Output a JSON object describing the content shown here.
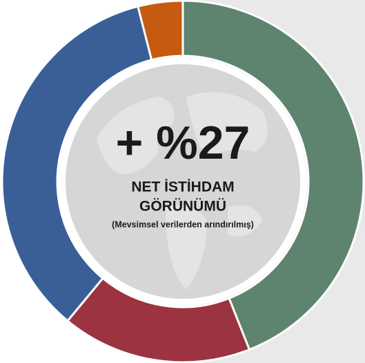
{
  "chart_data": {
    "type": "donut",
    "values": [
      44,
      17,
      35,
      4
    ],
    "colors": [
      "#5e8470",
      "#9b3340",
      "#3a5f97",
      "#c55a11"
    ],
    "headline": "+ %27",
    "label_line1": "NET İSTİHDAM",
    "label_line2": "GÖRÜNÜMÜ",
    "note": "(Mevsimsel verilerden arındırılmış)"
  }
}
